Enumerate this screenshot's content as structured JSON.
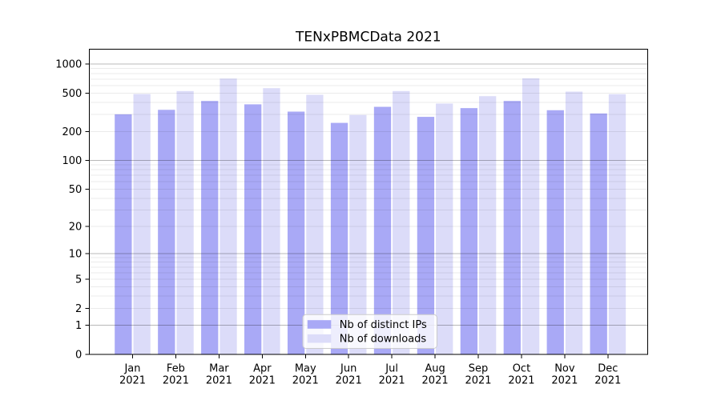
{
  "figure": {
    "background": "#ffffff",
    "frame_color": "#000000"
  },
  "chart_data": {
    "type": "bar",
    "title": "TENxPBMCData 2021",
    "categories": [
      "Jan",
      "Feb",
      "Mar",
      "Apr",
      "May",
      "Jun",
      "Jul",
      "Aug",
      "Sep",
      "Oct",
      "Nov",
      "Dec"
    ],
    "category_year": "2021",
    "series": [
      {
        "name": "Nb of distinct IPs",
        "color": "#a9a9f6",
        "values": [
          302,
          336,
          415,
          383,
          322,
          246,
          361,
          284,
          350,
          415,
          333,
          308
        ]
      },
      {
        "name": "Nb of downloads",
        "color": "#dcdcf9",
        "values": [
          490,
          526,
          708,
          563,
          481,
          297,
          526,
          390,
          465,
          713,
          519,
          488
        ]
      }
    ],
    "xlabel": "",
    "ylabel": "",
    "y_scale": "log1p",
    "y_ticks": [
      0,
      1,
      2,
      5,
      10,
      20,
      50,
      100,
      200,
      500,
      1000
    ],
    "ylim": [
      0,
      1425
    ],
    "grid": "horizontal log gridlines (minor + darker decade majors) drawn over bars",
    "legend_position": "lower center",
    "grid_minor_color": "rgba(0,0,0,0.08)",
    "grid_major_color": "rgba(0,0,0,0.28)"
  }
}
